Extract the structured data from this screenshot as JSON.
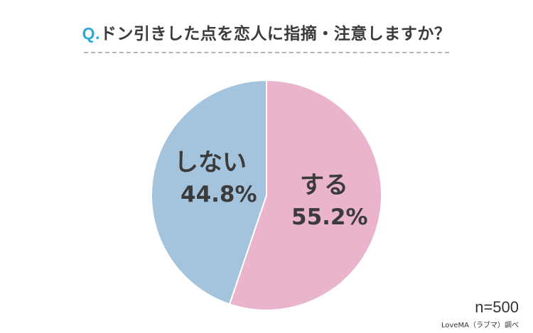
{
  "title": {
    "prefix": "Q.",
    "text": "ドン引きした点を恋人に指摘・注意しますか？",
    "prefix_color": "#2ca7d8"
  },
  "chart_data": {
    "type": "pie",
    "title": "Q.ドン引きした点を恋人に指摘・注意しますか？",
    "slices": [
      {
        "label": "する",
        "value": 55.2,
        "value_label": "55.2%",
        "color": "#e9b4cc"
      },
      {
        "label": "しない",
        "value": 44.8,
        "value_label": "44.8%",
        "color": "#a3c4dc"
      }
    ],
    "start": "top",
    "direction": "clockwise",
    "legend": "none"
  },
  "footer": {
    "n": "n=500",
    "source": "LoveMA（ラブマ）調べ"
  }
}
